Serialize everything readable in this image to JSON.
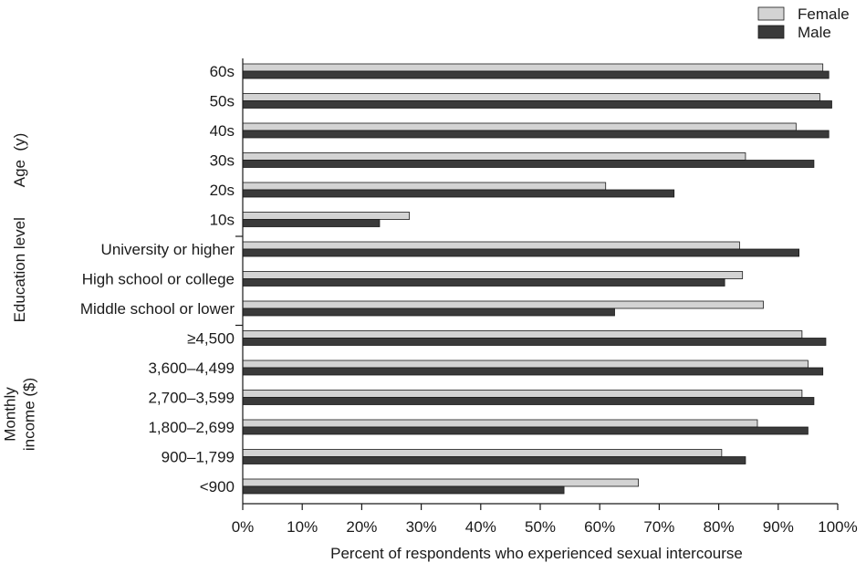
{
  "chart_data": {
    "type": "bar",
    "orientation": "horizontal",
    "categories": [
      "60s",
      "50s",
      "40s",
      "30s",
      "20s",
      "10s",
      "University or higher",
      "High school or college",
      "Middle school or lower",
      "≥4,500",
      "3,600–4,499",
      "2,700–3,599",
      "1,800–2,699",
      "900–1,799",
      "<900"
    ],
    "series": [
      {
        "name": "Female",
        "color": "#d3d3d3",
        "values": [
          97.5,
          97,
          93,
          84.5,
          61,
          28,
          83.5,
          84,
          87.5,
          94,
          95,
          94,
          86.5,
          80.5,
          66.5
        ]
      },
      {
        "name": "Male",
        "color": "#3a3a3a",
        "values": [
          98.5,
          99,
          98.5,
          96,
          72.5,
          23,
          93.5,
          81,
          62.5,
          98,
          97.5,
          96,
          95,
          84.5,
          54
        ]
      }
    ],
    "groups": [
      {
        "label": "Age (y)",
        "lines": [
          "Age  (y)"
        ],
        "categories": [
          "60s",
          "50s",
          "40s",
          "30s",
          "20s",
          "10s"
        ]
      },
      {
        "label": "Education level",
        "lines": [
          "Education level"
        ],
        "categories": [
          "University or higher",
          "High school or college",
          "Middle school or lower"
        ]
      },
      {
        "label": "Monthly income ($)",
        "lines": [
          "Monthly",
          "income ($)"
        ],
        "categories": [
          "≥4,500",
          "3,600–4,499",
          "2,700–3,599",
          "1,800–2,699",
          "900–1,799",
          "<900"
        ]
      }
    ],
    "xlabel": "Percent of respondents who experienced sexual intercourse",
    "ylabel": "",
    "xlim": [
      0,
      100
    ],
    "xticks": [
      "0%",
      "10%",
      "20%",
      "30%",
      "40%",
      "50%",
      "60%",
      "70%",
      "80%",
      "90%",
      "100%"
    ],
    "legend": {
      "position": "top-right",
      "entries": [
        "Female",
        "Male"
      ]
    },
    "grid": false
  }
}
